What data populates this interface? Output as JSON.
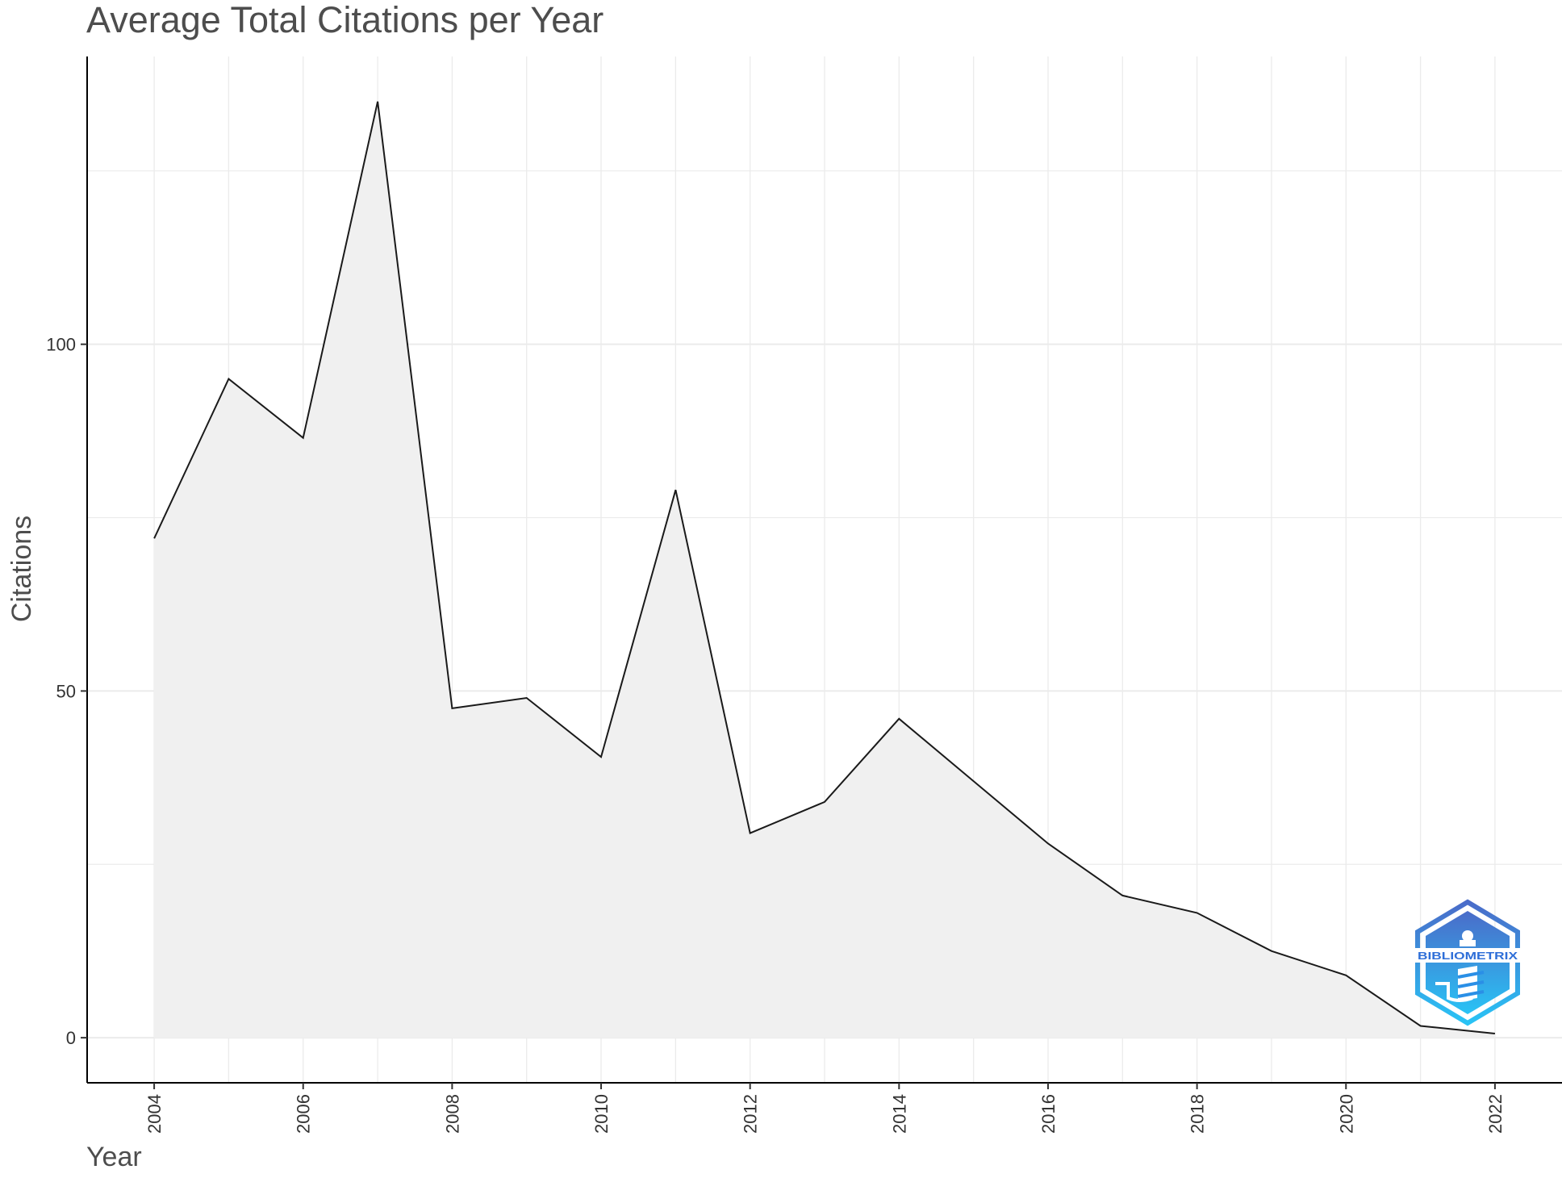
{
  "chart_data": {
    "type": "area",
    "title": "Average Total Citations per Year",
    "xlabel": "Year",
    "ylabel": "Citations",
    "x": [
      2004,
      2005,
      2006,
      2007,
      2008,
      2009,
      2010,
      2011,
      2012,
      2013,
      2014,
      2015,
      2016,
      2017,
      2018,
      2019,
      2020,
      2021,
      2022
    ],
    "series": [
      {
        "values": [
          72,
          95,
          86.5,
          135,
          47.5,
          49,
          40.5,
          79,
          29.5,
          34,
          46,
          37,
          28,
          20.5,
          18,
          12.5,
          9,
          1.7,
          0.6
        ]
      }
    ],
    "xticks": [
      "2004",
      "2006",
      "2008",
      "2010",
      "2012",
      "2014",
      "2016",
      "2018",
      "2020",
      "2022"
    ],
    "yticks": [
      "0",
      "50",
      "100"
    ],
    "xlim": [
      2003.1,
      2022.9
    ],
    "ylim": [
      -6.5,
      141.5
    ],
    "grid": true,
    "legend": "none",
    "colors": {
      "fill": "#f0f0f0",
      "line": "#1a1a1a",
      "grid": "#ebebeb",
      "axis": "#000000"
    }
  },
  "logo": {
    "text": "BIBLIOMETRIX",
    "colors": [
      "#4a6cc9",
      "#29c3f5"
    ]
  }
}
